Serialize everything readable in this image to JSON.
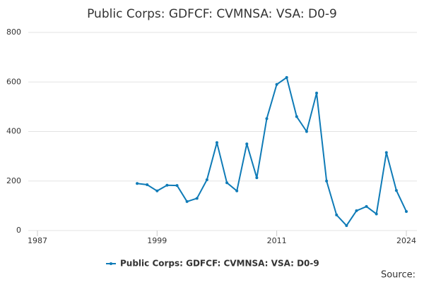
{
  "chart_data": {
    "type": "line",
    "title": "Public Corps: GDFCF: CVMNSA: VSA: D0-9",
    "x": [
      1997,
      1998,
      1999,
      2000,
      2001,
      2002,
      2003,
      2004,
      2005,
      2006,
      2007,
      2008,
      2009,
      2010,
      2011,
      2012,
      2013,
      2014,
      2015,
      2016,
      2017,
      2018,
      2019,
      2020,
      2021,
      2022,
      2023,
      2024
    ],
    "series": [
      {
        "name": "Public Corps: GDFCF: CVMNSA: VSA: D0-9",
        "color": "#0f7bb7",
        "values": [
          190,
          185,
          160,
          183,
          182,
          117,
          130,
          205,
          355,
          193,
          160,
          350,
          213,
          452,
          590,
          618,
          460,
          400,
          555,
          200,
          63,
          20,
          80,
          97,
          67,
          315,
          162,
          77
        ]
      }
    ],
    "xlim": [
      1987,
      2024
    ],
    "xticks": [
      1987,
      1999,
      2011,
      2024
    ],
    "ylim": [
      0,
      800
    ],
    "yticks": [
      0,
      200,
      400,
      600,
      800
    ],
    "grid": true,
    "source": "Source:"
  }
}
